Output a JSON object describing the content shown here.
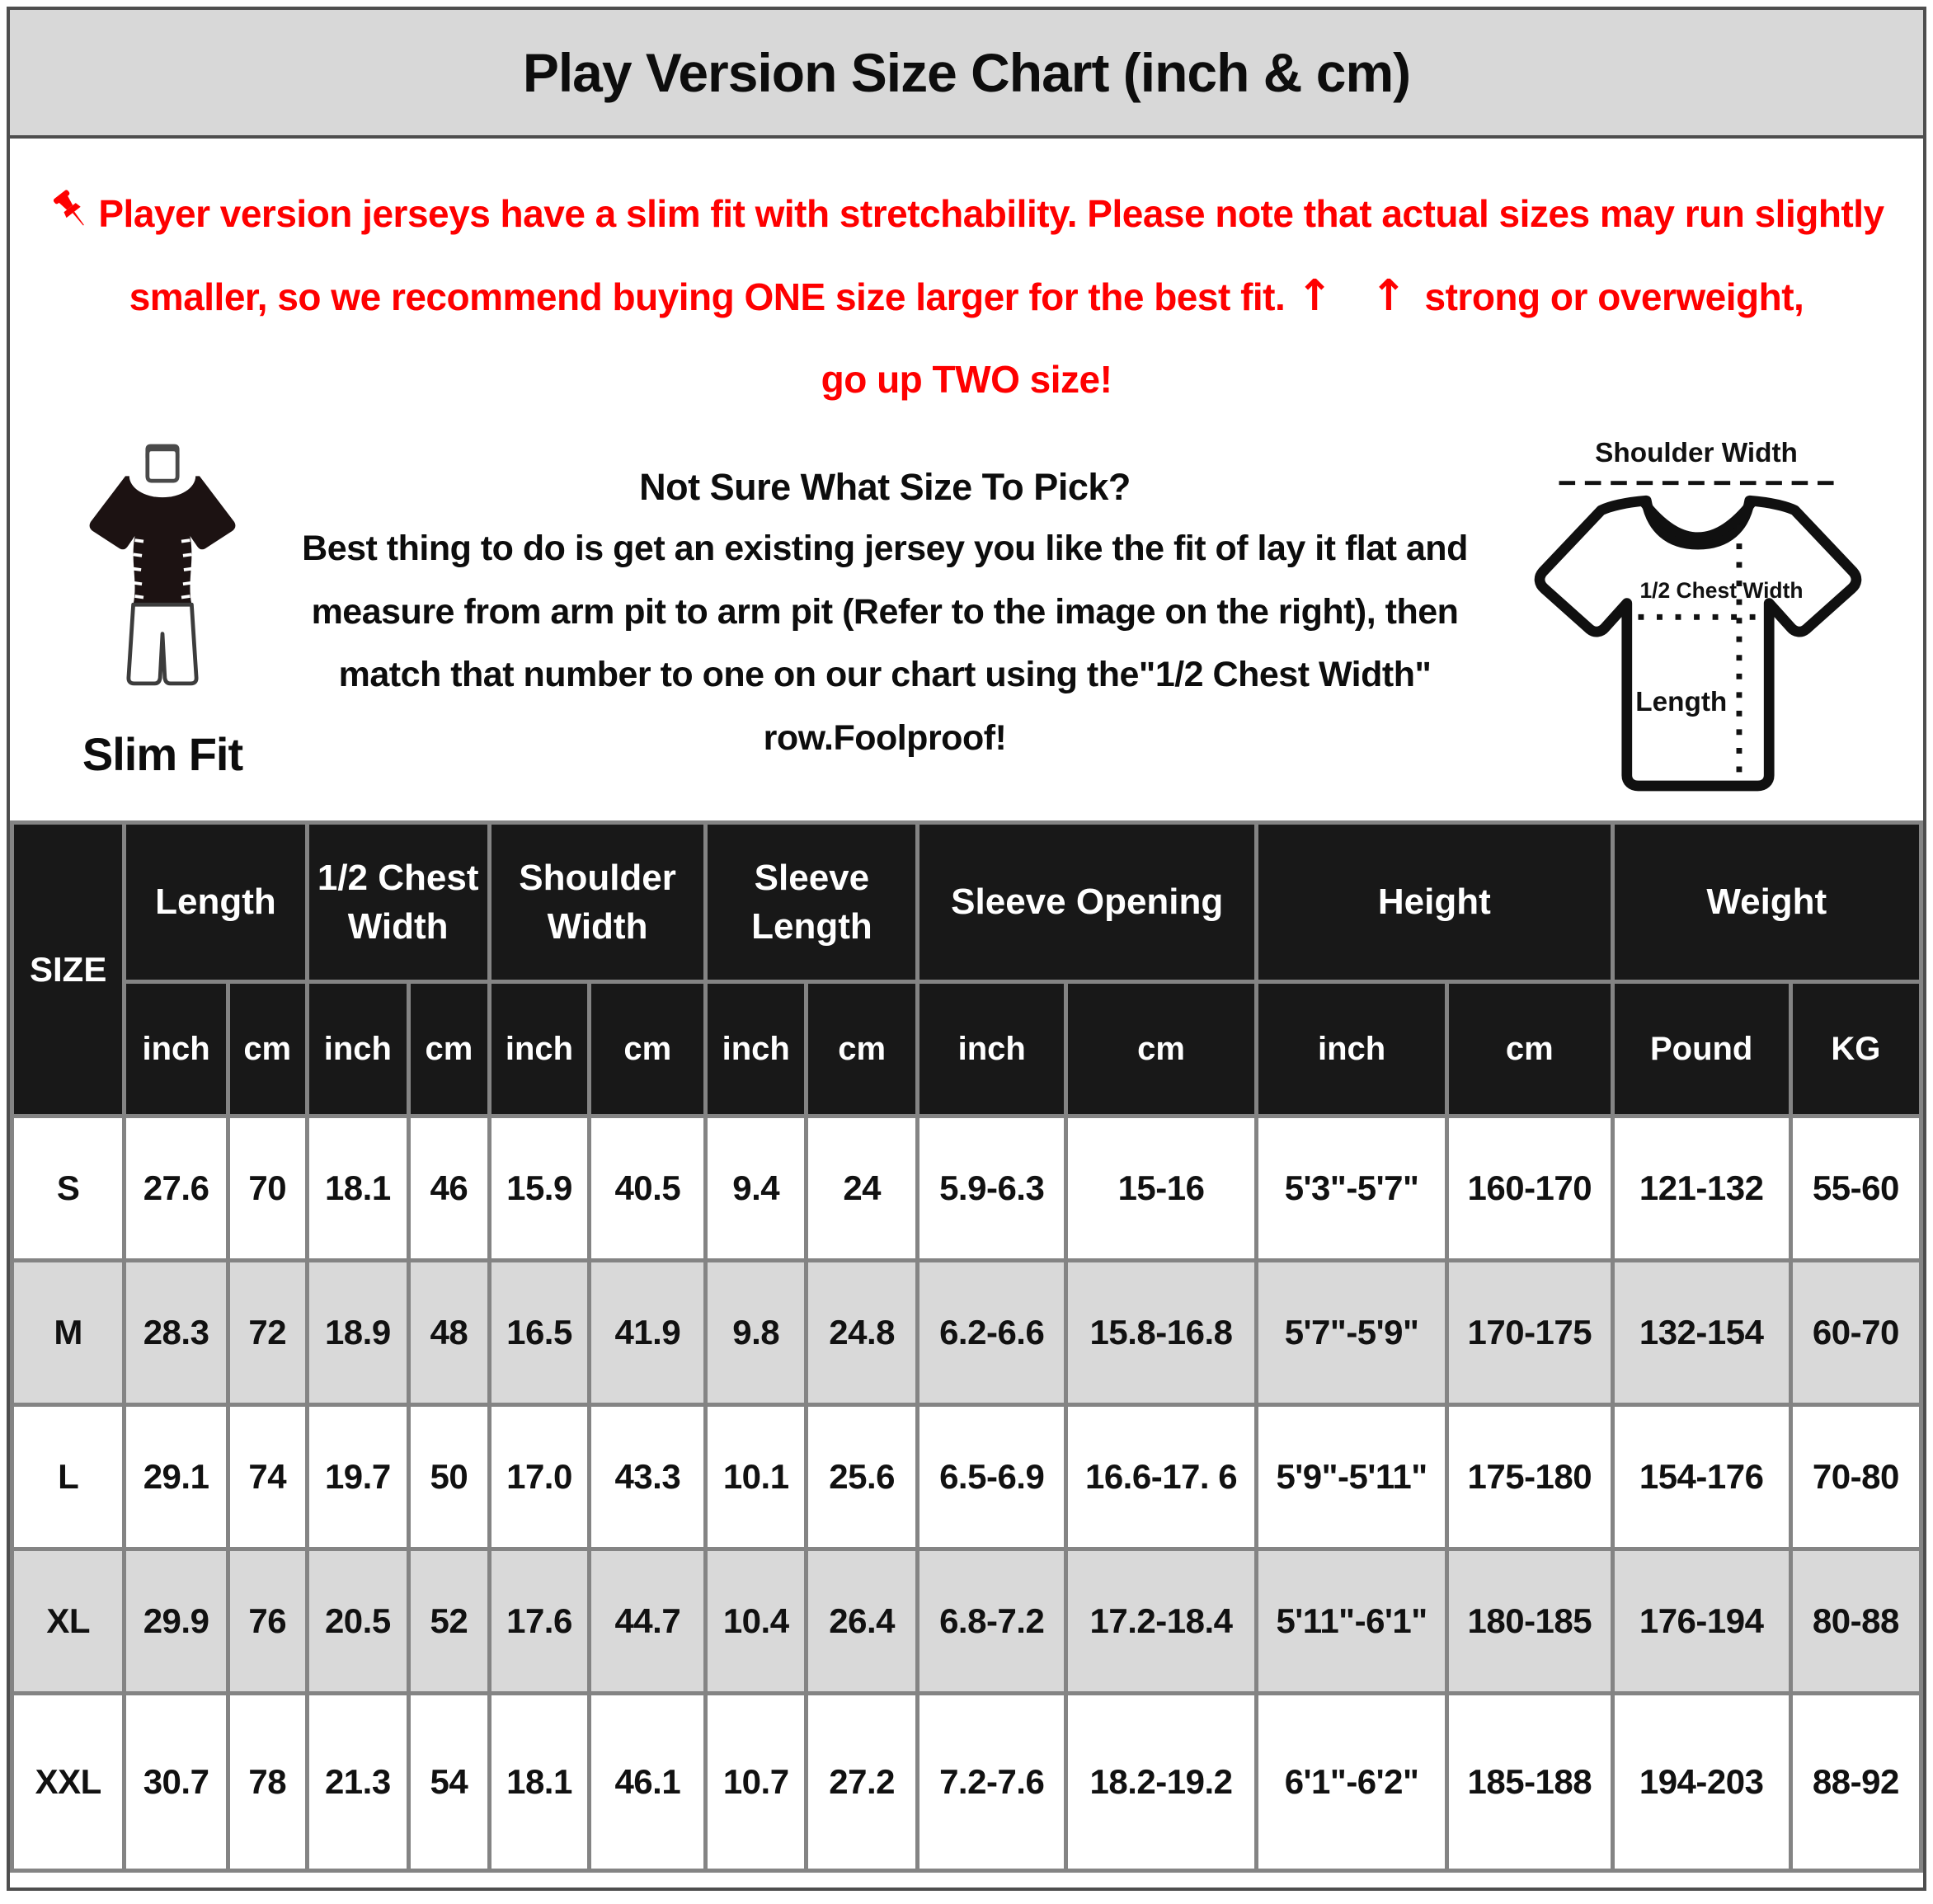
{
  "title": "Play Version Size Chart (inch & cm)",
  "notice": {
    "text": "Player version jerseys have a slim fit with stretchability. Please note that actual sizes may run slightly smaller, so we recommend buying ONE size larger for the best fit.",
    "arrows": "↑ ↑",
    "text2": "strong or overweight,",
    "text3": "go up TWO size!"
  },
  "slim_fit": {
    "label": "Slim Fit"
  },
  "size_help": {
    "heading": "Not Sure What Size To Pick?",
    "body": "Best thing to do is get an existing jersey you like the fit of lay it flat and measure from arm pit to arm pit (Refer to the image on the right), then match that number to one on our chart using the\"1/2 Chest Width\" row.Foolproof!"
  },
  "diagram": {
    "shoulder_width_label": "Shoulder Width",
    "half_chest_width_label": "1/2 Chest Width",
    "length_label": "Length"
  },
  "colors": {
    "accent_red": "#fe0000",
    "header_bg": "#181818",
    "row_alt_bg": "#d9d9d9",
    "title_bg": "#d8d8d8",
    "grid_line": "#848484"
  },
  "table": {
    "size_header": "SIZE",
    "groups": [
      {
        "label": "Length",
        "sub": [
          "inch",
          "cm"
        ]
      },
      {
        "label": "1/2 Chest Width",
        "sub": [
          "inch",
          "cm"
        ]
      },
      {
        "label": "Shoulder Width",
        "sub": [
          "inch",
          "cm"
        ]
      },
      {
        "label": "Sleeve Length",
        "sub": [
          "inch",
          "cm"
        ]
      },
      {
        "label": "Sleeve Opening",
        "sub": [
          "inch",
          "cm"
        ]
      },
      {
        "label": "Height",
        "sub": [
          "inch",
          "cm"
        ]
      },
      {
        "label": "Weight",
        "sub": [
          "Pound",
          "KG"
        ]
      }
    ],
    "rows": [
      {
        "size": "S",
        "values": [
          "27.6",
          "70",
          "18.1",
          "46",
          "15.9",
          "40.5",
          "9.4",
          "24",
          "5.9-6.3",
          "15-16",
          "5'3\"-5'7\"",
          "160-170",
          "121-132",
          "55-60"
        ]
      },
      {
        "size": "M",
        "values": [
          "28.3",
          "72",
          "18.9",
          "48",
          "16.5",
          "41.9",
          "9.8",
          "24.8",
          "6.2-6.6",
          "15.8-16.8",
          "5'7\"-5'9\"",
          "170-175",
          "132-154",
          "60-70"
        ]
      },
      {
        "size": "L",
        "values": [
          "29.1",
          "74",
          "19.7",
          "50",
          "17.0",
          "43.3",
          "10.1",
          "25.6",
          "6.5-6.9",
          "16.6-17. 6",
          "5'9\"-5'11\"",
          "175-180",
          "154-176",
          "70-80"
        ]
      },
      {
        "size": "XL",
        "values": [
          "29.9",
          "76",
          "20.5",
          "52",
          "17.6",
          "44.7",
          "10.4",
          "26.4",
          "6.8-7.2",
          "17.2-18.4",
          "5'11\"-6'1\"",
          "180-185",
          "176-194",
          "80-88"
        ]
      },
      {
        "size": "XXL",
        "values": [
          "30.7",
          "78",
          "21.3",
          "54",
          "18.1",
          "46.1",
          "10.7",
          "27.2",
          "7.2-7.6",
          "18.2-19.2",
          "6'1\"-6'2\"",
          "185-188",
          "194-203",
          "88-92"
        ]
      }
    ]
  }
}
